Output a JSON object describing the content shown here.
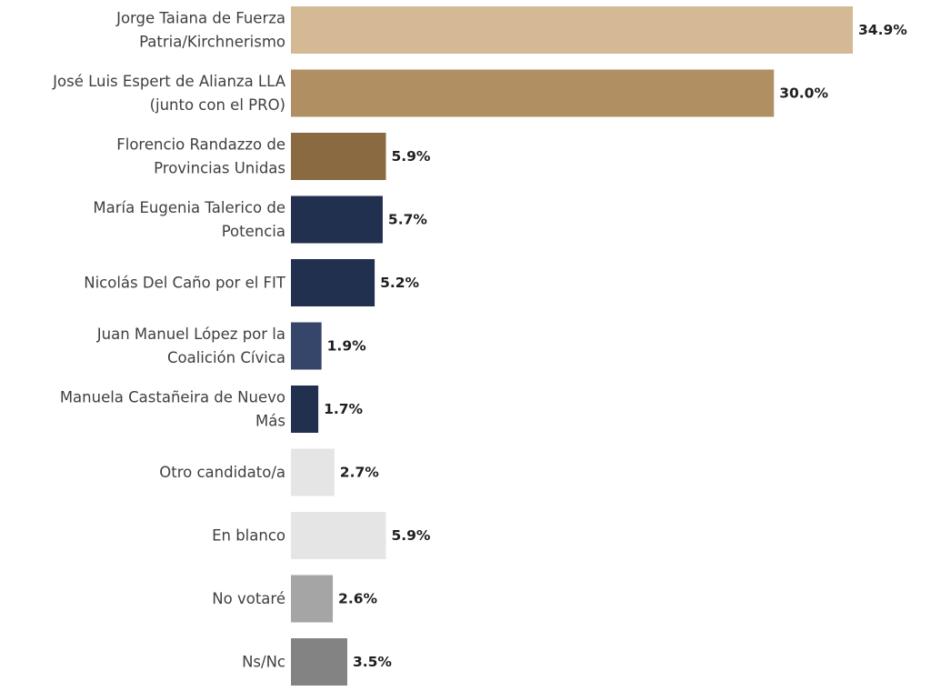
{
  "chart_data": {
    "type": "bar",
    "orientation": "horizontal",
    "title": "",
    "xlabel": "",
    "ylabel": "",
    "xlim": [
      0,
      34.9
    ],
    "grid": false,
    "legend": "none",
    "value_suffix": "%",
    "categories": [
      [
        "Jorge Taiana de Fuerza",
        "Patria/Kirchnerismo"
      ],
      [
        "José Luis Espert de Alianza LLA",
        "(junto con el PRO)"
      ],
      [
        "Florencio Randazzo de",
        "Provincias Unidas"
      ],
      [
        "María Eugenia Talerico de",
        "Potencia"
      ],
      [
        "Nicolás Del Caño por el FIT"
      ],
      [
        "Juan Manuel López por la",
        "Coalición Cívica"
      ],
      [
        "Manuela Castañeira de Nuevo",
        "Más"
      ],
      [
        "Otro candidato/a"
      ],
      [
        "En blanco"
      ],
      [
        "No votaré"
      ],
      [
        "Ns/Nc"
      ]
    ],
    "values": [
      34.9,
      30.0,
      5.9,
      5.7,
      5.2,
      1.9,
      1.7,
      2.7,
      5.9,
      2.6,
      3.5
    ],
    "value_labels": [
      "34.9%",
      "30.0%",
      "5.9%",
      "5.7%",
      "5.2%",
      "1.9%",
      "1.7%",
      "2.7%",
      "5.9%",
      "2.6%",
      "3.5%"
    ],
    "colors": [
      "#d4b994",
      "#b08f62",
      "#8a6a40",
      "#22304f",
      "#22304f",
      "#36456a",
      "#22304f",
      "#e5e5e5",
      "#e5e5e5",
      "#a5a5a5",
      "#838383"
    ]
  }
}
